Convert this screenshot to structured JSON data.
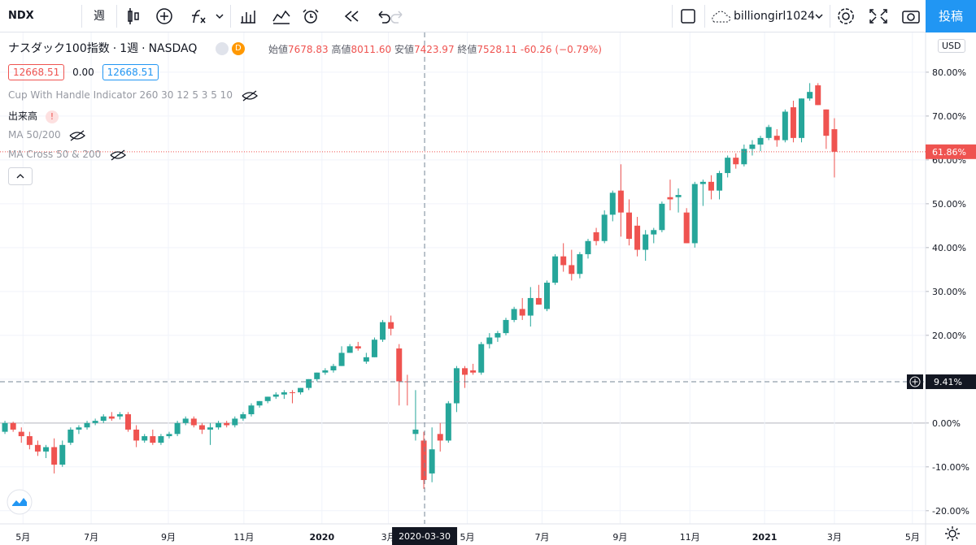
{
  "toolbar": {
    "symbol": "NDX",
    "interval": "週",
    "user": "billiongirl1024",
    "publish": "投稿"
  },
  "legend": {
    "name": "ナスダック100指数",
    "separator": "·",
    "interval": "1週",
    "exchange": "NASDAQ",
    "badge": "D",
    "open_label": "始値",
    "open": "7678.83",
    "high_label": "高値",
    "high": "8011.60",
    "low_label": "安値",
    "low": "7423.97",
    "close_label": "終値",
    "close": "7528.11",
    "change": "-60.26 (−0.79%)",
    "values": [
      "12668.51",
      "0.00",
      "12668.51"
    ],
    "indicators": [
      "Cup With Handle Indicator 260 30 12 5 3 5 10",
      "出来高",
      "MA 50/200",
      "MA Cross 50 & 200"
    ],
    "volume_alert": "!"
  },
  "currency": "USD",
  "chart_data": {
    "type": "candlestick",
    "up_color": "#26a69a",
    "down_color": "#ef5350",
    "open": [
      -2.0,
      0.0,
      -2.0,
      -3.0,
      -5.0,
      -6.5,
      -5.5,
      -9.5,
      -4.5,
      -1.5,
      -1.0,
      0.0,
      0.5,
      1.5,
      1.5,
      2.0,
      -1.5,
      -4.0,
      -3.0,
      -4.5,
      -3.0,
      -2.5,
      0.0,
      1.0,
      -0.5,
      -1.5,
      -1.0,
      0.0,
      -0.5,
      1.0,
      2.0,
      4.0,
      5.0,
      6.0,
      6.5,
      7.0,
      7.0,
      8.0,
      10.0,
      11.5,
      12.0,
      13.0,
      16.0,
      17.5,
      14.0,
      15.0,
      19.0,
      23.0,
      17.0,
      9.5,
      -2.5,
      -4.0,
      -11.5,
      -2.5,
      -4.0,
      4.5,
      12.5,
      12.0,
      11.5,
      18.0,
      19.5,
      20.5,
      23.5,
      26.0,
      24.5,
      28.5,
      26.0,
      32.0,
      38.0,
      36.0,
      34.0,
      38.5,
      43.5,
      41.5,
      47.5,
      53.0,
      48.0,
      45.0,
      39.5,
      43.0,
      44.0,
      51.5,
      51.5,
      48.0,
      41.0,
      54.5,
      55.0,
      53.0,
      57.0,
      60.5,
      59.0,
      62.5,
      63.5,
      65.0,
      65.5,
      64.5,
      72.0,
      65.0,
      74.0,
      77.0,
      71.5,
      67.0
    ],
    "high": [
      0.5,
      0.3,
      -1.0,
      -2.0,
      -4.0,
      -5.0,
      -3.5,
      -4.0,
      -1.0,
      -0.5,
      0.5,
      1.0,
      2.0,
      2.5,
      2.5,
      2.5,
      -0.5,
      -2.5,
      -1.5,
      -2.5,
      -2.0,
      0.5,
      1.5,
      1.5,
      0.0,
      0.0,
      0.5,
      0.5,
      1.5,
      2.5,
      4.5,
      5.0,
      6.0,
      7.0,
      7.5,
      7.5,
      8.0,
      10.0,
      11.5,
      12.5,
      13.5,
      17.5,
      18.0,
      18.5,
      16.0,
      19.5,
      23.5,
      24.5,
      18.0,
      11.0,
      7.5,
      -2.0,
      -1.0,
      0.0,
      5.0,
      13.0,
      13.0,
      13.5,
      18.5,
      20.5,
      21.0,
      24.0,
      26.5,
      28.5,
      31.0,
      31.5,
      32.5,
      38.5,
      41.0,
      39.5,
      39.0,
      42.0,
      44.5,
      48.5,
      53.0,
      59.0,
      51.0,
      47.0,
      44.0,
      44.5,
      50.5,
      55.5,
      53.5,
      49.0,
      55.0,
      55.5,
      56.5,
      57.5,
      61.0,
      61.5,
      63.5,
      64.5,
      65.5,
      68.0,
      67.0,
      71.5,
      73.5,
      74.0,
      77.5,
      77.5,
      71.5,
      69.5
    ],
    "low": [
      -2.5,
      -2.0,
      -4.5,
      -6.0,
      -7.5,
      -8.0,
      -11.5,
      -10.0,
      -5.0,
      -2.5,
      -1.5,
      -0.5,
      0.0,
      0.5,
      0.8,
      -2.0,
      -5.5,
      -4.5,
      -5.0,
      -5.0,
      -3.5,
      -3.0,
      -0.5,
      -1.0,
      -2.5,
      -5.0,
      -1.5,
      -1.0,
      -1.0,
      0.5,
      1.5,
      3.5,
      4.5,
      5.5,
      5.5,
      4.5,
      6.5,
      7.5,
      9.5,
      11.0,
      11.5,
      13.0,
      16.0,
      16.5,
      13.5,
      15.0,
      18.5,
      20.0,
      4.0,
      4.0,
      -4.0,
      -15.0,
      -13.5,
      -6.5,
      -4.5,
      2.5,
      8.0,
      11.0,
      11.0,
      17.0,
      18.5,
      20.0,
      23.0,
      23.5,
      22.0,
      27.0,
      25.5,
      31.5,
      34.5,
      32.5,
      33.0,
      37.5,
      40.5,
      41.0,
      46.0,
      42.5,
      40.5,
      38.0,
      37.0,
      41.0,
      43.5,
      48.5,
      48.0,
      41.0,
      40.0,
      49.5,
      51.0,
      51.0,
      56.0,
      58.0,
      58.5,
      61.0,
      62.0,
      64.5,
      63.0,
      64.0,
      64.0,
      64.0,
      73.5,
      72.5,
      62.5,
      56.0
    ],
    "close": [
      0.0,
      -1.5,
      -3.0,
      -5.0,
      -6.5,
      -5.5,
      -9.5,
      -5.0,
      -1.5,
      -1.0,
      0.0,
      0.5,
      1.5,
      1.0,
      2.0,
      -1.5,
      -4.0,
      -3.0,
      -4.5,
      -3.0,
      -2.5,
      0.0,
      1.0,
      -0.5,
      -1.5,
      -1.0,
      0.0,
      -0.5,
      1.0,
      2.0,
      4.0,
      5.0,
      6.0,
      6.5,
      7.0,
      6.9,
      8.0,
      10.0,
      11.5,
      12.0,
      13.0,
      16.0,
      17.5,
      17.0,
      15.0,
      19.0,
      23.0,
      21.5,
      9.5,
      9.4,
      -1.5,
      -13.0,
      -6.0,
      -4.0,
      4.5,
      12.5,
      11.0,
      11.5,
      18.0,
      19.5,
      20.5,
      23.5,
      26.0,
      24.5,
      28.5,
      27.0,
      32.0,
      38.0,
      36.0,
      34.0,
      38.5,
      41.5,
      41.5,
      47.5,
      52.5,
      48.0,
      42.0,
      39.5,
      43.0,
      44.0,
      50.0,
      51.0,
      52.0,
      41.0,
      54.5,
      55.0,
      53.0,
      57.0,
      60.5,
      59.0,
      62.5,
      63.5,
      65.0,
      67.5,
      64.5,
      71.0,
      65.0,
      74.0,
      75.5,
      72.5,
      65.5,
      61.86
    ],
    "ylim": [
      -23.0,
      87.2
    ],
    "yticks": [
      {
        "value": 80,
        "label": "80.00%"
      },
      {
        "value": 70,
        "label": "70.00%"
      },
      {
        "value": 60,
        "label": "60.00%"
      },
      {
        "value": 50,
        "label": "50.00%"
      },
      {
        "value": 40,
        "label": "40.00%"
      },
      {
        "value": 30,
        "label": "30.00%"
      },
      {
        "value": 20,
        "label": "20.00%"
      },
      {
        "value": 10,
        "label": "10.00%"
      },
      {
        "value": 0,
        "label": "0.00%"
      },
      {
        "value": -10,
        "label": "-10.00%"
      },
      {
        "value": -20,
        "label": "-20.00%"
      }
    ],
    "xlim": [
      -0.6,
      112.1
    ],
    "xticks": [
      {
        "value": 2.2,
        "label": "5月"
      },
      {
        "value": 10.5,
        "label": "7月"
      },
      {
        "value": 19.9,
        "label": "9月"
      },
      {
        "value": 29.1,
        "label": "11月"
      },
      {
        "value": 38.6,
        "label": "2020"
      },
      {
        "value": 46.7,
        "label": "3月"
      },
      {
        "value": 56.3,
        "label": "5月"
      },
      {
        "value": 65.4,
        "label": "7月"
      },
      {
        "value": 74.9,
        "label": "9月"
      },
      {
        "value": 83.4,
        "label": "11月"
      },
      {
        "value": 92.5,
        "label": "2021"
      },
      {
        "value": 101.0,
        "label": "3月"
      },
      {
        "value": 110.5,
        "label": "5月"
      }
    ],
    "grid": true,
    "last": {
      "value": 61.86,
      "label": "61.86%"
    },
    "crosshair": {
      "value": 9.41,
      "label": "9.41%",
      "x": 51.1,
      "date": "2020-03-30"
    }
  }
}
